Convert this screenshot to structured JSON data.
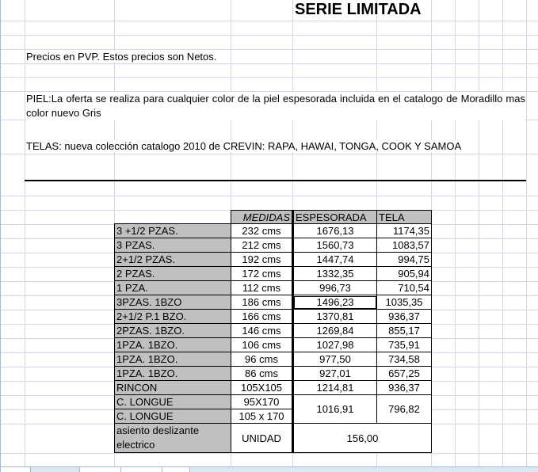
{
  "title": "SERIE LIMITADA",
  "notes": {
    "precios": "Precios en PVP. Estos precios son Netos.",
    "piel": "PIEL:La oferta se realiza para cualquier color de la piel espesorada incluida en el catalogo de Moradillo mas color nuevo Gris",
    "telas": "TELAS: nueva colección catalogo 2010 de CREVIN: RAPA, HAWAI, TONGA, COOK Y SAMOA"
  },
  "table": {
    "headers": [
      "MEDIDAS",
      "ESPESORADA",
      "TELA"
    ],
    "rows": [
      {
        "label": "3 +1/2 PZAS.",
        "medidas": "232 cms",
        "espesorada": "1676,13",
        "tela": "1174,35"
      },
      {
        "label": "3 PZAS.",
        "medidas": "212 cms",
        "espesorada": "1560,73",
        "tela": "1083,57"
      },
      {
        "label": "2+1/2 PZAS.",
        "medidas": "192 cms",
        "espesorada": "1447,74",
        "tela": "994,75"
      },
      {
        "label": "2 PZAS.",
        "medidas": "172 cms",
        "espesorada": "1332,35",
        "tela": "905,94"
      },
      {
        "label": "1 PZA.",
        "medidas": "112 cms",
        "espesorada": "996,73",
        "tela": "710,54"
      },
      {
        "label": "3PZAS. 1BZO",
        "medidas": "186 cms",
        "espesorada": "1496,23",
        "tela": "1035,35"
      },
      {
        "label": "2+1/2 P.1 BZO.",
        "medidas": "166 cms",
        "espesorada": "1370,81",
        "tela": "936,37"
      },
      {
        "label": "2PZAS. 1BZO.",
        "medidas": "146 cms",
        "espesorada": "1269,84",
        "tela": "855,17"
      },
      {
        "label": "1PZA. 1BZO.",
        "medidas": "106 cms",
        "espesorada": "1027,98",
        "tela": "735,91"
      },
      {
        "label": "1PZA. 1BZO.",
        "medidas": "96 cms",
        "espesorada": "977,50",
        "tela": "734,58"
      },
      {
        "label": "1PZA. 1BZO.",
        "medidas": "86 cms",
        "espesorada": "927,01",
        "tela": "657,25"
      },
      {
        "label": "RINCON",
        "medidas": "105X105",
        "espesorada": "1214,81",
        "tela": "936,37"
      }
    ],
    "longue": {
      "labels": [
        "C. LONGUE",
        "C. LONGUE"
      ],
      "medidas": [
        "95X170",
        "105 x 170"
      ],
      "espesorada": "1016,91",
      "tela": "796,82"
    },
    "asiento": {
      "label_line1": "asiento deslizante",
      "label_line2": "electrico",
      "medidas": "UNIDAD",
      "price": "156,00"
    }
  }
}
